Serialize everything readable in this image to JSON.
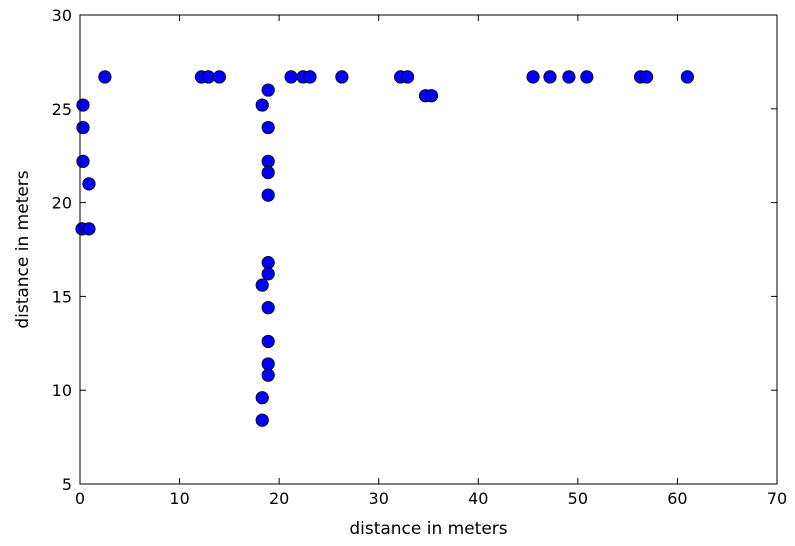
{
  "chart_data": {
    "type": "scatter",
    "xlabel": "distance in meters",
    "ylabel": "distance in meters",
    "xlim": [
      0,
      70
    ],
    "ylim": [
      5,
      30
    ],
    "xticks": [
      0,
      10,
      20,
      30,
      40,
      50,
      60,
      70
    ],
    "yticks": [
      5,
      10,
      15,
      20,
      25,
      30
    ],
    "grid": false,
    "marker_color": "#0000ff",
    "marker_edge": "#000000",
    "points": [
      {
        "x": 0.3,
        "y": 25.2
      },
      {
        "x": 0.3,
        "y": 24.0
      },
      {
        "x": 0.3,
        "y": 22.2
      },
      {
        "x": 0.9,
        "y": 21.0
      },
      {
        "x": 0.2,
        "y": 18.6
      },
      {
        "x": 0.9,
        "y": 18.6
      },
      {
        "x": 2.5,
        "y": 26.7
      },
      {
        "x": 12.2,
        "y": 26.7
      },
      {
        "x": 12.9,
        "y": 26.7
      },
      {
        "x": 14.0,
        "y": 26.7
      },
      {
        "x": 18.9,
        "y": 26.0
      },
      {
        "x": 18.3,
        "y": 25.2
      },
      {
        "x": 18.9,
        "y": 24.0
      },
      {
        "x": 18.9,
        "y": 22.2
      },
      {
        "x": 18.9,
        "y": 21.6
      },
      {
        "x": 18.9,
        "y": 20.4
      },
      {
        "x": 18.9,
        "y": 16.8
      },
      {
        "x": 18.9,
        "y": 16.2
      },
      {
        "x": 18.3,
        "y": 15.6
      },
      {
        "x": 18.9,
        "y": 14.4
      },
      {
        "x": 18.9,
        "y": 12.6
      },
      {
        "x": 18.9,
        "y": 11.4
      },
      {
        "x": 18.9,
        "y": 10.8
      },
      {
        "x": 18.3,
        "y": 9.6
      },
      {
        "x": 18.3,
        "y": 8.4
      },
      {
        "x": 21.2,
        "y": 26.7
      },
      {
        "x": 22.4,
        "y": 26.7
      },
      {
        "x": 23.1,
        "y": 26.7
      },
      {
        "x": 26.3,
        "y": 26.7
      },
      {
        "x": 32.2,
        "y": 26.7
      },
      {
        "x": 32.9,
        "y": 26.7
      },
      {
        "x": 34.7,
        "y": 25.7
      },
      {
        "x": 35.3,
        "y": 25.7
      },
      {
        "x": 45.5,
        "y": 26.7
      },
      {
        "x": 47.2,
        "y": 26.7
      },
      {
        "x": 49.1,
        "y": 26.7
      },
      {
        "x": 50.9,
        "y": 26.7
      },
      {
        "x": 56.3,
        "y": 26.7
      },
      {
        "x": 56.9,
        "y": 26.7
      },
      {
        "x": 61.0,
        "y": 26.7
      }
    ]
  }
}
